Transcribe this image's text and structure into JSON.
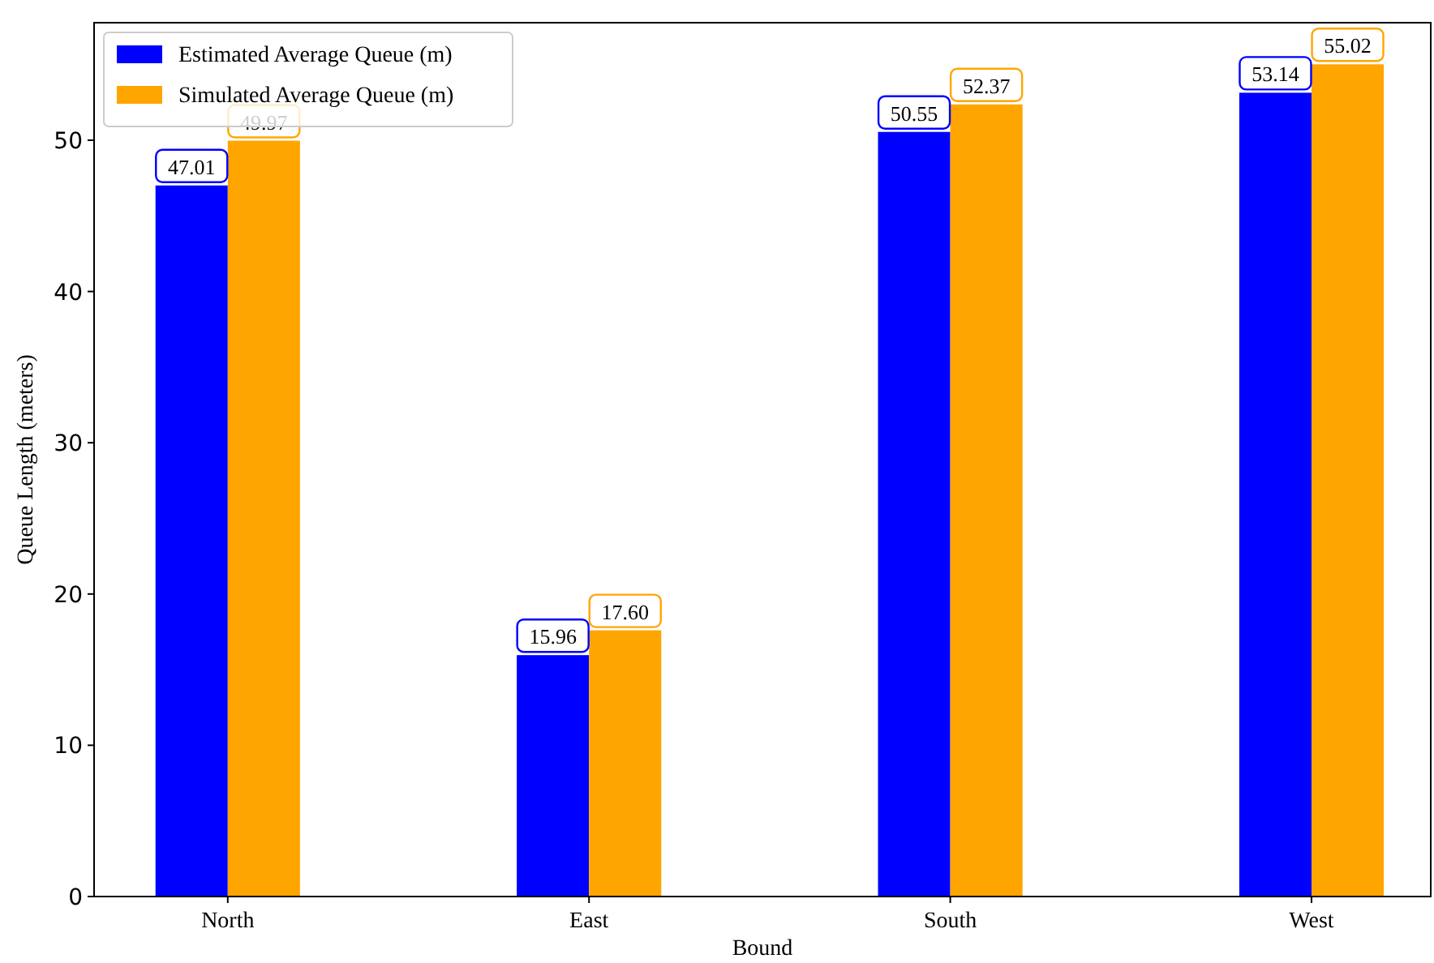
{
  "chart_data": {
    "type": "bar",
    "xlabel": "Bound",
    "ylabel": "Queue Length (meters)",
    "categories": [
      "North",
      "East",
      "South",
      "West"
    ],
    "series": [
      {
        "name": "Estimated Average Queue (m)",
        "color": "#0000ff",
        "values": [
          47.01,
          15.96,
          50.55,
          53.14
        ]
      },
      {
        "name": "Simulated Average Queue (m)",
        "color": "#ffa500",
        "values": [
          49.97,
          17.6,
          52.37,
          55.02
        ]
      }
    ],
    "value_labels": [
      [
        "47.01",
        "15.96",
        "50.55",
        "53.14"
      ],
      [
        "49.97",
        "17.60",
        "52.37",
        "55.02"
      ]
    ],
    "ylim": [
      0,
      57.77
    ],
    "yticks": [
      0,
      10,
      20,
      30,
      40,
      50
    ],
    "legend": "top left",
    "grid": false
  }
}
